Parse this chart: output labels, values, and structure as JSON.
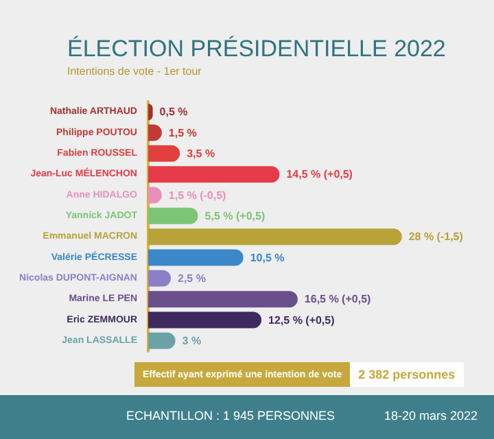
{
  "chart_data": {
    "type": "bar",
    "orientation": "horizontal",
    "title": "ÉLECTION PRÉSIDENTIELLE 2022",
    "subtitle": "Intentions de vote - 1er tour",
    "categories": [
      "Nathalie ARTHAUD",
      "Philippe POUTOU",
      "Fabien ROUSSEL",
      "Jean-Luc MÉLENCHON",
      "Anne HIDALGO",
      "Yannick JADOT",
      "Emmanuel MACRON",
      "Valérie PÉCRESSE",
      "Nicolas DUPONT-AIGNAN",
      "Marine LE PEN",
      "Eric ZEMMOUR",
      "Jean LASSALLE"
    ],
    "values": [
      0.5,
      1.5,
      3.5,
      14.5,
      1.5,
      5.5,
      28,
      10.5,
      2.5,
      16.5,
      12.5,
      3
    ],
    "colors": [
      "#a3302f",
      "#c23a35",
      "#e0403f",
      "#e53a48",
      "#e98fbd",
      "#7cc576",
      "#b8a23a",
      "#3b87c9",
      "#8c7fc6",
      "#6a4f8c",
      "#3e2a5e",
      "#6aa2a8"
    ],
    "value_labels": [
      "0,5 %",
      "1,5 %",
      "3,5 %",
      "14,5 % (+0,5)",
      "1,5 % (-0,5)",
      "5,5 % (+0,5)",
      "28 % (-1,5)",
      "10,5 %",
      "2,5 %",
      "16,5 % (+0,5)",
      "12,5 % (+0,5)",
      "3 %"
    ],
    "annotations": [
      "Effectif ayant exprimé une intention de vote",
      "2 382 personnes",
      "ECHANTILLON : 1 945 PERSONNES",
      "18-20 mars 2022"
    ]
  }
}
